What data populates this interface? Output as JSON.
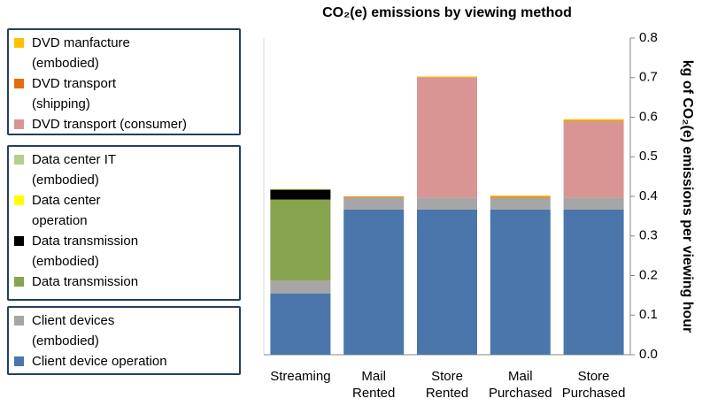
{
  "chart_data": {
    "type": "stacked_bar",
    "title": "CO₂(e) emissions by viewing method",
    "y_axis_label": "kg of CO₂(e) emissions per viewing hour",
    "categories": [
      "Streaming",
      "Mail Rented",
      "Store Rented",
      "Mail Purchased",
      "Store Purchased"
    ],
    "series": [
      {
        "name": "Client device operation",
        "color": "#4a76ab",
        "values": [
          0.155,
          0.367,
          0.367,
          0.367,
          0.367
        ]
      },
      {
        "name": "Client devices (embodied)",
        "color": "#a6a6a6",
        "values": [
          0.032,
          0.03,
          0.03,
          0.03,
          0.03
        ]
      },
      {
        "name": "Data transmission",
        "color": "#86a34e",
        "values": [
          0.205,
          0,
          0,
          0,
          0
        ]
      },
      {
        "name": "Data transmission (embodied)",
        "color": "#000000",
        "values": [
          0.025,
          0,
          0,
          0,
          0
        ]
      },
      {
        "name": "Data center operation",
        "color": "#ffff00",
        "values": [
          0.001,
          0,
          0,
          0,
          0
        ]
      },
      {
        "name": "Data center IT (embodied)",
        "color": "#b3cf8c",
        "values": [
          0.001,
          0,
          0,
          0,
          0
        ]
      },
      {
        "name": "DVD transport (consumer)",
        "color": "#d99594",
        "values": [
          0,
          0,
          0.303,
          0,
          0.193
        ]
      },
      {
        "name": "DVD transport (shipping)",
        "color": "#e46c0a",
        "values": [
          0,
          0.002,
          0.001,
          0.002,
          0.001
        ]
      },
      {
        "name": "DVD manfacture (embodied)",
        "color": "#ffc000",
        "values": [
          0,
          0.001,
          0.002,
          0.003,
          0.004
        ]
      }
    ],
    "ylim": [
      0,
      0.8
    ],
    "yticks": [
      {
        "value": 0,
        "label": "0.0"
      },
      0.1,
      0.2,
      0.3,
      0.4,
      0.5,
      0.6,
      0.7,
      0.8
    ],
    "y_axis_side": "right"
  }
}
